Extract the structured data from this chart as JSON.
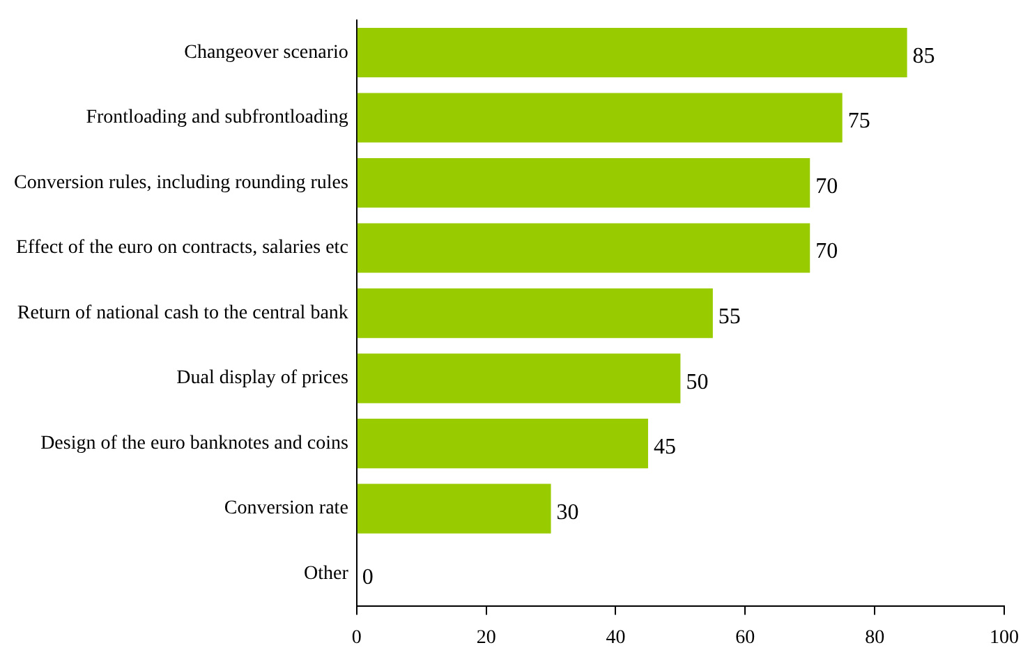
{
  "chart_data": {
    "type": "bar",
    "orientation": "horizontal",
    "categories": [
      "Changeover scenario",
      "Frontloading and subfrontloading",
      "Conversion rules, including rounding rules",
      "Effect of the euro on contracts, salaries etc",
      "Return of national cash to the central bank",
      "Dual display of prices",
      "Design of the euro banknotes and coins",
      "Conversion rate",
      "Other"
    ],
    "values": [
      85,
      75,
      70,
      70,
      55,
      50,
      45,
      30,
      0
    ],
    "color": "#99cc00",
    "xlim": [
      0,
      100
    ],
    "xticks": [
      0,
      20,
      40,
      60,
      80,
      100
    ],
    "grid": false,
    "legend": false,
    "data_labels": true
  }
}
